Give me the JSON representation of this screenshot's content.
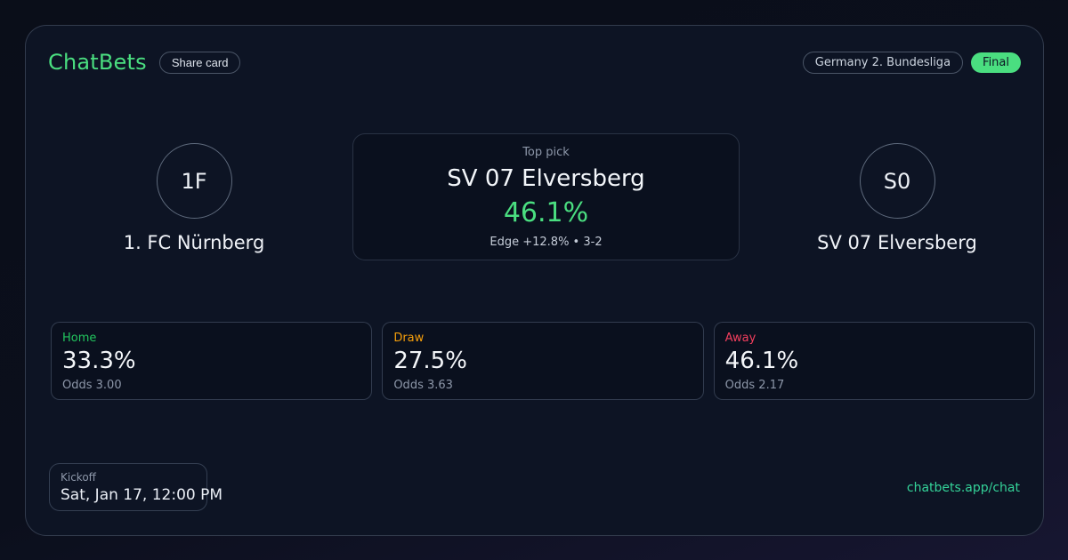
{
  "theme": {
    "brand_green": "#4ade80",
    "badge_green": "#4ade80",
    "link_green": "#34d399",
    "home_green": "#22c55e",
    "draw_orange": "#f59e0b",
    "away_red": "#f43f5e",
    "pick_green": "#4ade80"
  },
  "header": {
    "brand": "ChatBets",
    "share_label": "Share card",
    "league": "Germany 2. Bundesliga",
    "status": "Final"
  },
  "matchup": {
    "home": {
      "initials": "1F",
      "name": "1. FC Nürnberg"
    },
    "away": {
      "initials": "S0",
      "name": "SV 07 Elversberg"
    },
    "top_pick": {
      "label": "Top pick",
      "team": "SV 07 Elversberg",
      "probability": "46.1%",
      "detail": "Edge +12.8% • 3-2"
    }
  },
  "odds": [
    {
      "label": "Home",
      "probability": "33.3%",
      "odds": "Odds 3.00",
      "color": "#22c55e"
    },
    {
      "label": "Draw",
      "probability": "27.5%",
      "odds": "Odds 3.63",
      "color": "#f59e0b"
    },
    {
      "label": "Away",
      "probability": "46.1%",
      "odds": "Odds 2.17",
      "color": "#f43f5e"
    }
  ],
  "footer": {
    "kickoff_label": "Kickoff",
    "kickoff_time": "Sat, Jan 17, 12:00 PM",
    "link": "chatbets.app/chat"
  }
}
